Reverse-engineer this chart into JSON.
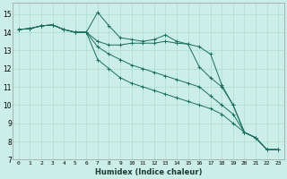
{
  "xlabel": "Humidex (Indice chaleur)",
  "bg_color": "#cceee8",
  "grid_color": "#aaddcc",
  "line_color": "#1a6e5e",
  "xlim": [
    -0.5,
    23.5
  ],
  "ylim": [
    7,
    15.6
  ],
  "yticks": [
    7,
    8,
    9,
    10,
    11,
    12,
    13,
    14,
    15
  ],
  "xticks": [
    0,
    1,
    2,
    3,
    4,
    5,
    6,
    7,
    8,
    9,
    10,
    11,
    12,
    13,
    14,
    15,
    16,
    17,
    18,
    19,
    20,
    21,
    22,
    23
  ],
  "series": [
    {
      "x": [
        0,
        1,
        2,
        3,
        4,
        5,
        6,
        7,
        8,
        9,
        10,
        11,
        12,
        13,
        14,
        15,
        16,
        17,
        18,
        19,
        20,
        21,
        22,
        23
      ],
      "y": [
        14.15,
        14.2,
        14.35,
        14.4,
        14.15,
        14.0,
        14.0,
        15.1,
        14.35,
        13.7,
        13.6,
        13.5,
        13.6,
        13.85,
        13.5,
        13.35,
        13.2,
        12.8,
        11.1,
        10.0,
        8.5,
        8.2,
        7.55,
        7.55
      ]
    },
    {
      "x": [
        0,
        1,
        2,
        3,
        4,
        5,
        6,
        7,
        8,
        9,
        10,
        11,
        12,
        13,
        14,
        15,
        16,
        17,
        18,
        19,
        20,
        21,
        22,
        23
      ],
      "y": [
        14.15,
        14.2,
        14.35,
        14.4,
        14.15,
        14.0,
        14.0,
        13.5,
        13.3,
        13.3,
        13.4,
        13.4,
        13.4,
        13.5,
        13.4,
        13.35,
        12.1,
        11.5,
        11.0,
        10.0,
        8.5,
        8.2,
        7.55,
        7.55
      ]
    },
    {
      "x": [
        0,
        1,
        2,
        3,
        4,
        5,
        6,
        7,
        8,
        9,
        10,
        11,
        12,
        13,
        14,
        15,
        16,
        17,
        18,
        19,
        20,
        21,
        22,
        23
      ],
      "y": [
        14.15,
        14.2,
        14.35,
        14.4,
        14.15,
        14.0,
        14.0,
        13.2,
        12.8,
        12.5,
        12.2,
        12.0,
        11.8,
        11.6,
        11.4,
        11.2,
        11.0,
        10.5,
        10.0,
        9.5,
        8.5,
        8.2,
        7.55,
        7.55
      ]
    },
    {
      "x": [
        0,
        1,
        2,
        3,
        4,
        5,
        6,
        7,
        8,
        9,
        10,
        11,
        12,
        13,
        14,
        15,
        16,
        17,
        18,
        19,
        20,
        21,
        22,
        23
      ],
      "y": [
        14.15,
        14.2,
        14.35,
        14.4,
        14.15,
        14.0,
        14.0,
        12.5,
        12.0,
        11.5,
        11.2,
        11.0,
        10.8,
        10.6,
        10.4,
        10.2,
        10.0,
        9.8,
        9.5,
        9.0,
        8.5,
        8.2,
        7.55,
        7.55
      ]
    }
  ]
}
